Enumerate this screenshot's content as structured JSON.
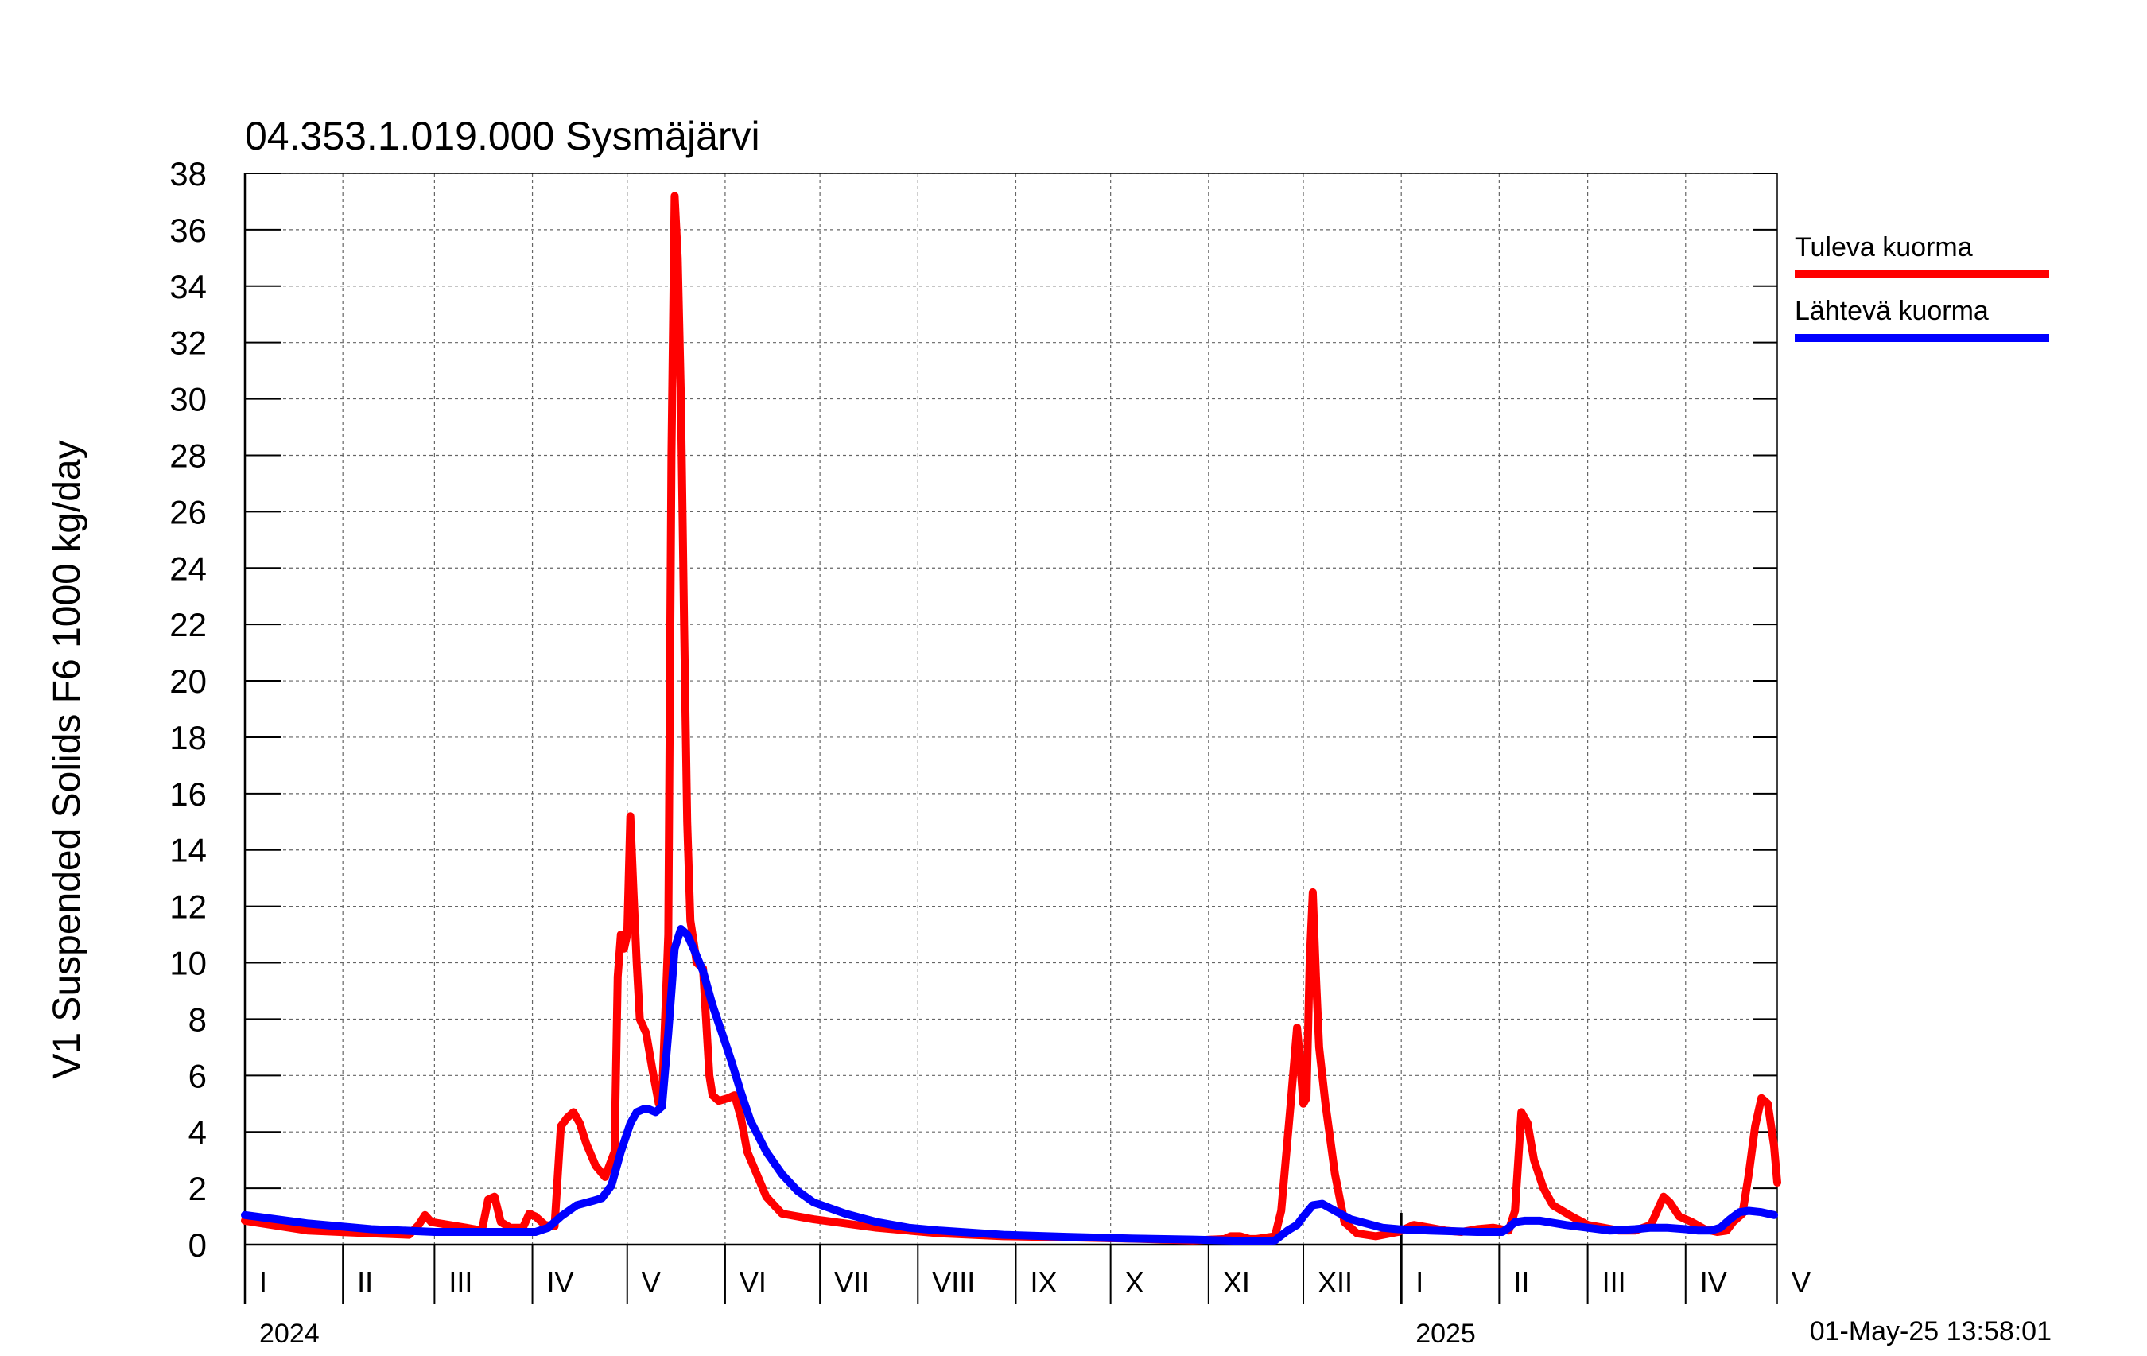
{
  "chart_data": {
    "type": "line",
    "title": "04.353.1.019.000 Sysmäjärvi",
    "ylabel": "V1 Suspended Solids F6 1000 kg/day",
    "xlabel": "",
    "ylim": [
      0,
      38
    ],
    "y_ticks": [
      0,
      2,
      4,
      6,
      8,
      10,
      12,
      14,
      16,
      18,
      20,
      22,
      24,
      26,
      28,
      30,
      32,
      34,
      36,
      38
    ],
    "x_range_days": [
      0,
      485
    ],
    "grid": true,
    "legend_position": "right",
    "month_labels": [
      {
        "label": "I",
        "day": 0
      },
      {
        "label": "II",
        "day": 31
      },
      {
        "label": "III",
        "day": 60
      },
      {
        "label": "IV",
        "day": 91
      },
      {
        "label": "V",
        "day": 121
      },
      {
        "label": "VI",
        "day": 152
      },
      {
        "label": "VII",
        "day": 182
      },
      {
        "label": "VIII",
        "day": 213
      },
      {
        "label": "IX",
        "day": 244
      },
      {
        "label": "X",
        "day": 274
      },
      {
        "label": "XI",
        "day": 305
      },
      {
        "label": "XII",
        "day": 335
      },
      {
        "label": "I",
        "day": 366
      },
      {
        "label": "II",
        "day": 397
      },
      {
        "label": "III",
        "day": 425
      },
      {
        "label": "IV",
        "day": 456
      }
    ],
    "month_label_last": "V",
    "month_last_day": 515,
    "month_boundaries": [
      0,
      31,
      60,
      91,
      121,
      152,
      182,
      213,
      244,
      274,
      305,
      335,
      366,
      397,
      425,
      456,
      486
    ],
    "year_labels": [
      {
        "label": "2024",
        "day": 0
      },
      {
        "label": "2025",
        "day": 366
      }
    ],
    "series": [
      {
        "name": "Tuleva kuorma",
        "color": "#ff0000",
        "points": [
          [
            0,
            0.85
          ],
          [
            20,
            0.5
          ],
          [
            40,
            0.4
          ],
          [
            52,
            0.35
          ],
          [
            55,
            0.7
          ],
          [
            57,
            1.05
          ],
          [
            59,
            0.8
          ],
          [
            70,
            0.6
          ],
          [
            75,
            0.5
          ],
          [
            77,
            1.6
          ],
          [
            79,
            1.7
          ],
          [
            81,
            0.8
          ],
          [
            84,
            0.6
          ],
          [
            88,
            0.6
          ],
          [
            90,
            1.1
          ],
          [
            92,
            1.0
          ],
          [
            95,
            0.7
          ],
          [
            98,
            0.65
          ],
          [
            100,
            4.2
          ],
          [
            102,
            4.5
          ],
          [
            104,
            4.7
          ],
          [
            106,
            4.3
          ],
          [
            108,
            3.6
          ],
          [
            111,
            2.8
          ],
          [
            114,
            2.4
          ],
          [
            117,
            3.3
          ],
          [
            118,
            9.5
          ],
          [
            119,
            11.0
          ],
          [
            120,
            10.5
          ],
          [
            121,
            11.0
          ],
          [
            122,
            15.2
          ],
          [
            123,
            12.5
          ],
          [
            124,
            10.0
          ],
          [
            125,
            8.0
          ],
          [
            127,
            7.5
          ],
          [
            129,
            6.2
          ],
          [
            131,
            5.0
          ],
          [
            132,
            5.2
          ],
          [
            133,
            8.0
          ],
          [
            134,
            11.0
          ],
          [
            135,
            28.0
          ],
          [
            136,
            37.2
          ],
          [
            137,
            35.0
          ],
          [
            138,
            30.0
          ],
          [
            139,
            22.0
          ],
          [
            140,
            15.0
          ],
          [
            141,
            11.5
          ],
          [
            143,
            10.0
          ],
          [
            145,
            9.8
          ],
          [
            147,
            6.0
          ],
          [
            148,
            5.3
          ],
          [
            150,
            5.1
          ],
          [
            153,
            5.2
          ],
          [
            155,
            5.3
          ],
          [
            157,
            4.5
          ],
          [
            159,
            3.3
          ],
          [
            162,
            2.5
          ],
          [
            165,
            1.7
          ],
          [
            170,
            1.1
          ],
          [
            180,
            0.9
          ],
          [
            200,
            0.6
          ],
          [
            220,
            0.4
          ],
          [
            240,
            0.3
          ],
          [
            265,
            0.25
          ],
          [
            285,
            0.2
          ],
          [
            300,
            0.15
          ],
          [
            310,
            0.2
          ],
          [
            312,
            0.3
          ],
          [
            315,
            0.3
          ],
          [
            318,
            0.2
          ],
          [
            320,
            0.2
          ],
          [
            326,
            0.3
          ],
          [
            328,
            1.2
          ],
          [
            331,
            5.0
          ],
          [
            333,
            7.7
          ],
          [
            334,
            6.5
          ],
          [
            335,
            5.0
          ],
          [
            336,
            5.2
          ],
          [
            337,
            10.0
          ],
          [
            338,
            12.5
          ],
          [
            339,
            9.5
          ],
          [
            340,
            7.0
          ],
          [
            342,
            5.0
          ],
          [
            345,
            2.5
          ],
          [
            348,
            0.8
          ],
          [
            352,
            0.4
          ],
          [
            358,
            0.3
          ],
          [
            365,
            0.45
          ],
          [
            370,
            0.7
          ],
          [
            375,
            0.6
          ],
          [
            380,
            0.5
          ],
          [
            385,
            0.45
          ],
          [
            390,
            0.55
          ],
          [
            395,
            0.6
          ],
          [
            400,
            0.5
          ],
          [
            402,
            1.2
          ],
          [
            404,
            4.7
          ],
          [
            406,
            4.3
          ],
          [
            408,
            3.0
          ],
          [
            411,
            2.0
          ],
          [
            414,
            1.4
          ],
          [
            420,
            1.0
          ],
          [
            425,
            0.7
          ],
          [
            430,
            0.6
          ],
          [
            435,
            0.5
          ],
          [
            440,
            0.5
          ],
          [
            445,
            0.7
          ],
          [
            447,
            1.2
          ],
          [
            449,
            1.7
          ],
          [
            451,
            1.5
          ],
          [
            454,
            1.0
          ],
          [
            458,
            0.8
          ],
          [
            462,
            0.55
          ],
          [
            466,
            0.45
          ],
          [
            469,
            0.5
          ],
          [
            471,
            0.8
          ],
          [
            474,
            1.1
          ],
          [
            476,
            2.5
          ],
          [
            478,
            4.2
          ],
          [
            480,
            5.2
          ],
          [
            482,
            5.0
          ],
          [
            484,
            3.5
          ],
          [
            486,
            2.2
          ],
          [
            488,
            1.8
          ],
          [
            491,
            1.7
          ],
          [
            494,
            1.4
          ],
          [
            496,
            2.5
          ],
          [
            498,
            3.0
          ],
          [
            501,
            3.2
          ],
          [
            503,
            3.4
          ],
          [
            505,
            4.5
          ],
          [
            507,
            8.0
          ],
          [
            508,
            12.5
          ],
          [
            509,
            14.7
          ],
          [
            510,
            12.0
          ],
          [
            511,
            9.0
          ],
          [
            512,
            6.5
          ],
          [
            513,
            7.5
          ],
          [
            514,
            6.0
          ],
          [
            515,
            10.0
          ],
          [
            516,
            14.6
          ],
          [
            517,
            11.0
          ],
          [
            518,
            7.0
          ],
          [
            519,
            6.2
          ],
          [
            520,
            5.7
          ],
          [
            521,
            5.2
          ],
          [
            522,
            4.5
          ],
          [
            524,
            3.5
          ],
          [
            526,
            2.8
          ],
          [
            529,
            2.0
          ],
          [
            531,
            1.5
          ],
          [
            533,
            0.9
          ],
          [
            535,
            2.2
          ],
          [
            537,
            2.0
          ],
          [
            539,
            1.3
          ],
          [
            541,
            0.9
          ],
          [
            543,
            0.7
          ],
          [
            545,
            1.2
          ],
          [
            547,
            1.0
          ],
          [
            549,
            1.1
          ],
          [
            551,
            2.2
          ],
          [
            553,
            1.5
          ],
          [
            555,
            1.0
          ],
          [
            557,
            0.6
          ]
        ]
      },
      {
        "name": "Lähtevä kuorma",
        "color": "#0000ff",
        "points": [
          [
            0,
            1.05
          ],
          [
            20,
            0.75
          ],
          [
            40,
            0.55
          ],
          [
            60,
            0.45
          ],
          [
            80,
            0.45
          ],
          [
            92,
            0.45
          ],
          [
            96,
            0.6
          ],
          [
            100,
            1.0
          ],
          [
            105,
            1.4
          ],
          [
            110,
            1.55
          ],
          [
            113,
            1.65
          ],
          [
            116,
            2.1
          ],
          [
            119,
            3.3
          ],
          [
            122,
            4.3
          ],
          [
            124,
            4.7
          ],
          [
            126,
            4.8
          ],
          [
            128,
            4.8
          ],
          [
            130,
            4.7
          ],
          [
            132,
            4.9
          ],
          [
            134,
            7.5
          ],
          [
            136,
            10.5
          ],
          [
            138,
            11.2
          ],
          [
            140,
            11.0
          ],
          [
            142,
            10.5
          ],
          [
            145,
            9.7
          ],
          [
            148,
            8.5
          ],
          [
            151,
            7.5
          ],
          [
            154,
            6.5
          ],
          [
            157,
            5.4
          ],
          [
            160,
            4.4
          ],
          [
            165,
            3.3
          ],
          [
            170,
            2.5
          ],
          [
            175,
            1.9
          ],
          [
            180,
            1.5
          ],
          [
            190,
            1.1
          ],
          [
            200,
            0.8
          ],
          [
            210,
            0.6
          ],
          [
            220,
            0.5
          ],
          [
            240,
            0.35
          ],
          [
            260,
            0.28
          ],
          [
            280,
            0.22
          ],
          [
            300,
            0.18
          ],
          [
            320,
            0.12
          ],
          [
            326,
            0.15
          ],
          [
            330,
            0.5
          ],
          [
            333,
            0.7
          ],
          [
            335,
            1.0
          ],
          [
            338,
            1.4
          ],
          [
            341,
            1.45
          ],
          [
            345,
            1.2
          ],
          [
            350,
            0.9
          ],
          [
            355,
            0.75
          ],
          [
            360,
            0.6
          ],
          [
            365,
            0.55
          ],
          [
            375,
            0.5
          ],
          [
            390,
            0.45
          ],
          [
            398,
            0.45
          ],
          [
            400,
            0.6
          ],
          [
            402,
            0.8
          ],
          [
            405,
            0.85
          ],
          [
            410,
            0.85
          ],
          [
            418,
            0.7
          ],
          [
            425,
            0.6
          ],
          [
            432,
            0.5
          ],
          [
            440,
            0.55
          ],
          [
            445,
            0.6
          ],
          [
            450,
            0.6
          ],
          [
            456,
            0.55
          ],
          [
            460,
            0.5
          ],
          [
            464,
            0.5
          ],
          [
            467,
            0.6
          ],
          [
            470,
            0.9
          ],
          [
            473,
            1.15
          ],
          [
            476,
            1.2
          ],
          [
            480,
            1.15
          ],
          [
            484,
            1.05
          ],
          [
            488,
            1.1
          ],
          [
            492,
            1.2
          ],
          [
            495,
            1.3
          ],
          [
            497,
            1.7
          ],
          [
            499,
            2.3
          ],
          [
            501,
            2.8
          ],
          [
            503,
            3.1
          ],
          [
            505,
            3.2
          ],
          [
            506,
            3.9
          ],
          [
            508,
            4.1
          ],
          [
            510,
            4.2
          ],
          [
            512,
            4.3
          ],
          [
            514,
            4.2
          ],
          [
            516,
            3.9
          ],
          [
            519,
            3.4
          ],
          [
            522,
            2.9
          ],
          [
            525,
            2.8
          ],
          [
            528,
            2.5
          ],
          [
            531,
            2.1
          ],
          [
            534,
            1.9
          ],
          [
            537,
            1.8
          ],
          [
            541,
            1.7
          ],
          [
            545,
            1.7
          ],
          [
            549,
            1.6
          ],
          [
            553,
            1.4
          ],
          [
            557,
            1.2
          ]
        ]
      }
    ],
    "timestamp": "01-May-25 13:58:01"
  }
}
